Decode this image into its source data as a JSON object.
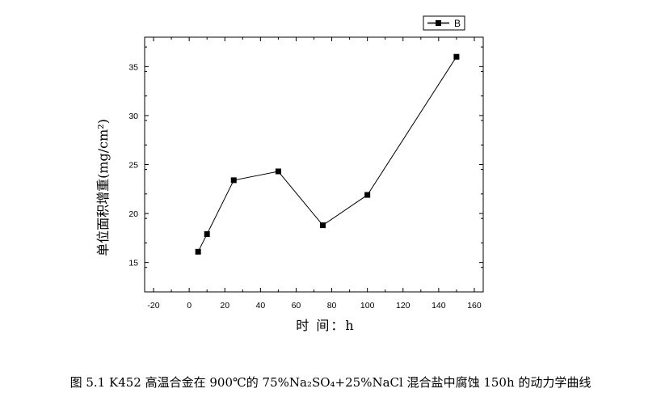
{
  "chart_data": {
    "type": "line",
    "xlabel": "时 间：h",
    "ylabel": "单位面积增重(mg/cm²)",
    "xlim": [
      -25,
      165
    ],
    "ylim": [
      12,
      38
    ],
    "xticks": [
      -20,
      0,
      20,
      40,
      60,
      80,
      100,
      120,
      140,
      160
    ],
    "yticks": [
      15,
      20,
      25,
      30,
      35
    ],
    "xtick_labels": [
      "-20",
      "0",
      "20",
      "40",
      "60",
      "80",
      "100",
      "120",
      "140",
      "160"
    ],
    "ytick_labels": [
      "15",
      "20",
      "25",
      "30",
      "35"
    ],
    "grid": false,
    "legend_position": "top-right",
    "series": [
      {
        "name": "B",
        "color": "#000000",
        "marker": "square",
        "x": [
          5,
          10,
          25,
          50,
          75,
          100,
          150
        ],
        "y": [
          16.1,
          17.9,
          23.4,
          24.3,
          18.8,
          21.9,
          36.0
        ]
      }
    ]
  },
  "caption": "图 5.1    K452 高温合金在 900℃的 75%Na₂SO₄+25%NaCl 混合盐中腐蚀 150h 的动力学曲线"
}
